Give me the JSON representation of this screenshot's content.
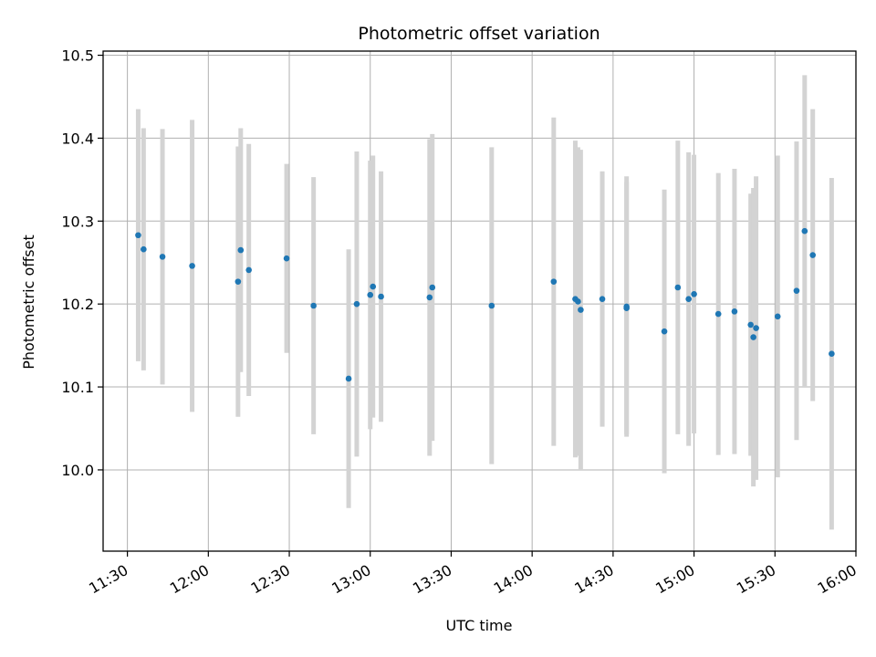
{
  "chart_data": {
    "type": "scatter",
    "title": "Photometric offset variation",
    "xlabel": "UTC time",
    "ylabel": "Photometric offset",
    "x_tick_labels": [
      "11:30",
      "12:00",
      "12:30",
      "13:00",
      "13:30",
      "14:00",
      "14:30",
      "15:00",
      "15:30",
      "16:00"
    ],
    "y_tick_labels": [
      "10.0",
      "10.1",
      "10.2",
      "10.3",
      "10.4",
      "10.5"
    ],
    "x_ticks": [
      "11:30",
      "12:00",
      "12:30",
      "13:00",
      "13:30",
      "14:00",
      "14:30",
      "15:00",
      "15:30",
      "16:00"
    ],
    "y_ticks": [
      10.0,
      10.1,
      10.2,
      10.3,
      10.4,
      10.5
    ],
    "xlim": [
      "11:21",
      "16:00"
    ],
    "ylim": [
      9.902,
      10.505
    ],
    "grid": true,
    "point_color": "#1f77b4",
    "errorbar_color": "#d3d3d3",
    "points": [
      {
        "x": "11:34",
        "y": 10.283,
        "err": 0.152
      },
      {
        "x": "11:36",
        "y": 10.266,
        "err": 0.146
      },
      {
        "x": "11:43",
        "y": 10.257,
        "err": 0.154
      },
      {
        "x": "11:54",
        "y": 10.246,
        "err": 0.176
      },
      {
        "x": "12:11",
        "y": 10.227,
        "err": 0.163
      },
      {
        "x": "12:12",
        "y": 10.265,
        "err": 0.147
      },
      {
        "x": "12:15",
        "y": 10.241,
        "err": 0.152
      },
      {
        "x": "12:29",
        "y": 10.255,
        "err": 0.114
      },
      {
        "x": "12:39",
        "y": 10.198,
        "err": 0.155
      },
      {
        "x": "12:52",
        "y": 10.11,
        "err": 0.156
      },
      {
        "x": "12:55",
        "y": 10.2,
        "err": 0.184
      },
      {
        "x": "13:00",
        "y": 10.211,
        "err": 0.162
      },
      {
        "x": "13:01",
        "y": 10.221,
        "err": 0.158
      },
      {
        "x": "13:04",
        "y": 10.209,
        "err": 0.151
      },
      {
        "x": "13:22",
        "y": 10.208,
        "err": 0.191
      },
      {
        "x": "13:23",
        "y": 10.22,
        "err": 0.185
      },
      {
        "x": "13:45",
        "y": 10.198,
        "err": 0.191
      },
      {
        "x": "14:08",
        "y": 10.227,
        "err": 0.198
      },
      {
        "x": "14:16",
        "y": 10.206,
        "err": 0.191
      },
      {
        "x": "14:17",
        "y": 10.203,
        "err": 0.186
      },
      {
        "x": "14:18",
        "y": 10.193,
        "err": 0.193
      },
      {
        "x": "14:26",
        "y": 10.206,
        "err": 0.154
      },
      {
        "x": "14:35",
        "y": 10.197,
        "err": 0.157
      },
      {
        "x": "14:35",
        "y": 10.195,
        "err": 0.152
      },
      {
        "x": "14:49",
        "y": 10.167,
        "err": 0.171
      },
      {
        "x": "14:54",
        "y": 10.22,
        "err": 0.177
      },
      {
        "x": "14:58",
        "y": 10.206,
        "err": 0.177
      },
      {
        "x": "15:00",
        "y": 10.212,
        "err": 0.168
      },
      {
        "x": "15:09",
        "y": 10.188,
        "err": 0.17
      },
      {
        "x": "15:15",
        "y": 10.191,
        "err": 0.172
      },
      {
        "x": "15:21",
        "y": 10.175,
        "err": 0.158
      },
      {
        "x": "15:22",
        "y": 10.16,
        "err": 0.18
      },
      {
        "x": "15:23",
        "y": 10.171,
        "err": 0.183
      },
      {
        "x": "15:31",
        "y": 10.185,
        "err": 0.194
      },
      {
        "x": "15:38",
        "y": 10.216,
        "err": 0.18
      },
      {
        "x": "15:41",
        "y": 10.288,
        "err": 0.188
      },
      {
        "x": "15:44",
        "y": 10.259,
        "err": 0.176
      },
      {
        "x": "15:51",
        "y": 10.14,
        "err": 0.212
      }
    ]
  }
}
